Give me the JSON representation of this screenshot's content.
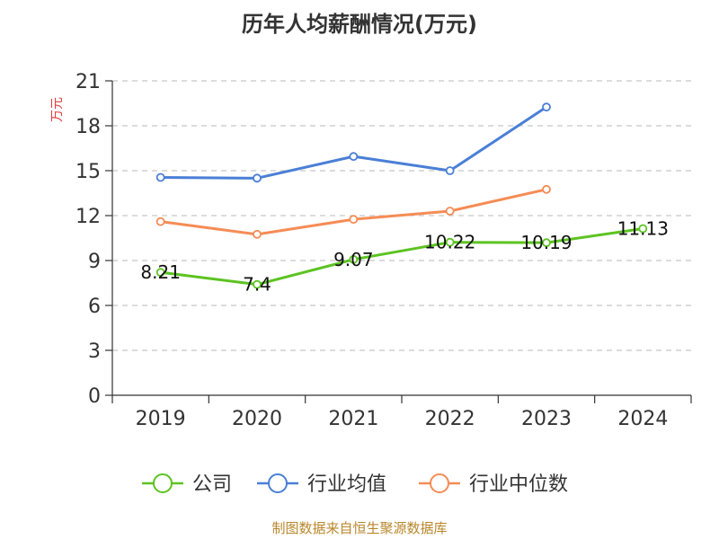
{
  "chart_data": {
    "type": "line",
    "title": "历年人均薪酬情况(万元)",
    "ylabel": "万元",
    "xlabel": "",
    "categories": [
      "2019",
      "2020",
      "2021",
      "2022",
      "2023",
      "2024"
    ],
    "ylim": [
      0,
      21
    ],
    "yticks": [
      0,
      3,
      6,
      9,
      12,
      15,
      18,
      21
    ],
    "grid": "horizontal-dashed",
    "legend_position": "bottom",
    "series": [
      {
        "name": "公司",
        "color": "#5cc321",
        "values": [
          8.21,
          7.4,
          9.07,
          10.22,
          10.19,
          11.13
        ],
        "labels": [
          "8.21",
          "7.4",
          "9.07",
          "10.22",
          "10.19",
          "11.13"
        ]
      },
      {
        "name": "行业均值",
        "color": "#4a7fd6",
        "values": [
          14.55,
          14.5,
          15.95,
          15.0,
          19.25,
          null
        ]
      },
      {
        "name": "行业中位数",
        "color": "#f58c55",
        "values": [
          11.6,
          10.75,
          11.75,
          12.3,
          13.75,
          null
        ]
      }
    ]
  },
  "footer": {
    "source": "制图数据来自恒生聚源数据库"
  }
}
